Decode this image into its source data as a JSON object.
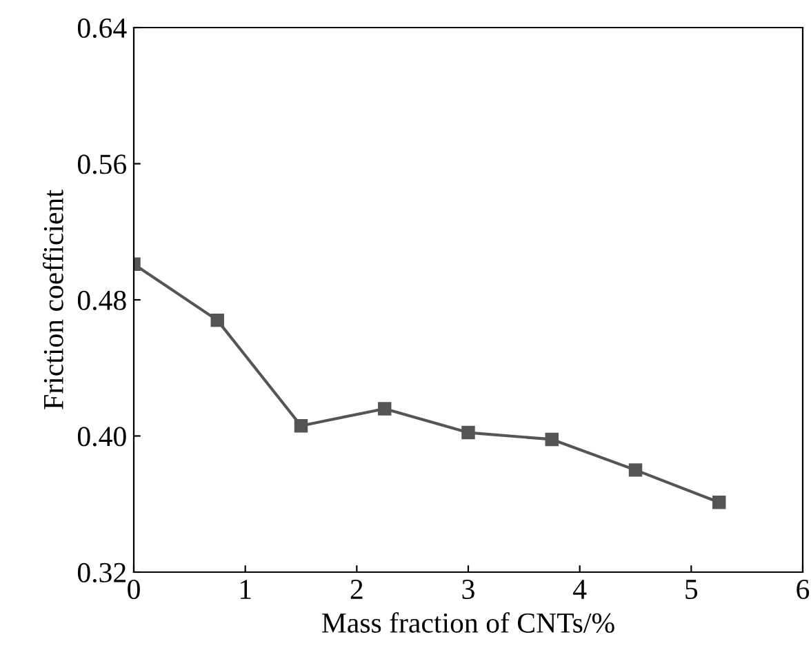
{
  "chart_data": {
    "type": "line",
    "xlabel": "Mass fraction of CNTs/%",
    "ylabel": "Friction coefficient",
    "x": [
      0,
      0.75,
      1.5,
      2.25,
      3,
      3.75,
      4.5,
      5.25
    ],
    "series": [
      {
        "color": "#555555",
        "values": [
          0.501,
          0.468,
          0.406,
          0.416,
          0.402,
          0.398,
          0.38,
          0.361
        ]
      }
    ],
    "xlim": [
      0,
      6
    ],
    "xticks": [
      0,
      1,
      2,
      3,
      4,
      5,
      6
    ],
    "ylim": [
      0.32,
      0.64
    ],
    "yticks": [
      {
        "value": 0.32,
        "label": "0.32"
      },
      {
        "value": 0.4,
        "label": "0.40"
      },
      {
        "value": 0.48,
        "label": "0.48"
      },
      {
        "value": 0.56,
        "label": "0.56"
      },
      {
        "value": 0.64,
        "label": "0.64"
      }
    ],
    "marker": "square",
    "line_style": "solid",
    "grid": false,
    "legend": false
  }
}
